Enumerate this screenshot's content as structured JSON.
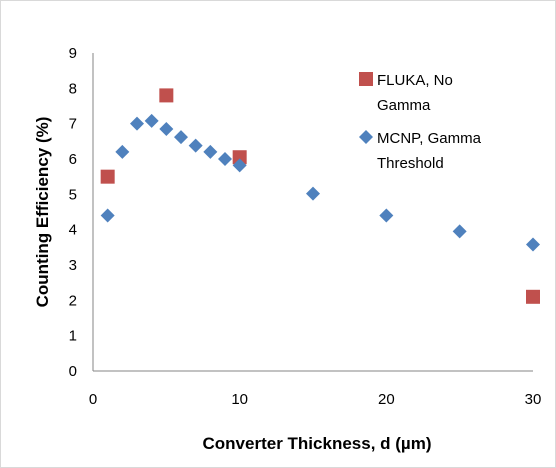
{
  "chart_data": {
    "type": "scatter",
    "xlabel": "Converter Thickness, d (µm)",
    "ylabel": "Counting Efficiency (%)",
    "xlim": [
      0,
      30
    ],
    "ylim": [
      0,
      9
    ],
    "xticks": [
      0,
      10,
      20,
      30
    ],
    "yticks": [
      0,
      1,
      2,
      3,
      4,
      5,
      6,
      7,
      8,
      9
    ],
    "grid": false,
    "legend_position": "top-right",
    "series": [
      {
        "name": "FLUKA, No Gamma",
        "legend_lines": [
          "FLUKA, No",
          "Gamma"
        ],
        "marker": "square",
        "color": "#c0504d",
        "points": [
          {
            "x": 1,
            "y": 5.5
          },
          {
            "x": 5,
            "y": 7.8
          },
          {
            "x": 10,
            "y": 6.05
          },
          {
            "x": 30,
            "y": 2.1
          }
        ]
      },
      {
        "name": "MCNP, Gamma Threshold",
        "legend_lines": [
          "MCNP, Gamma",
          "Threshold"
        ],
        "marker": "diamond",
        "color": "#4f81bd",
        "points": [
          {
            "x": 1,
            "y": 4.4
          },
          {
            "x": 2,
            "y": 6.2
          },
          {
            "x": 3,
            "y": 7.0
          },
          {
            "x": 4,
            "y": 7.08
          },
          {
            "x": 5,
            "y": 6.85
          },
          {
            "x": 6,
            "y": 6.62
          },
          {
            "x": 7,
            "y": 6.38
          },
          {
            "x": 8,
            "y": 6.2
          },
          {
            "x": 9,
            "y": 6.0
          },
          {
            "x": 10,
            "y": 5.82
          },
          {
            "x": 15,
            "y": 5.02
          },
          {
            "x": 20,
            "y": 4.4
          },
          {
            "x": 25,
            "y": 3.95
          },
          {
            "x": 30,
            "y": 3.58
          }
        ]
      }
    ]
  }
}
